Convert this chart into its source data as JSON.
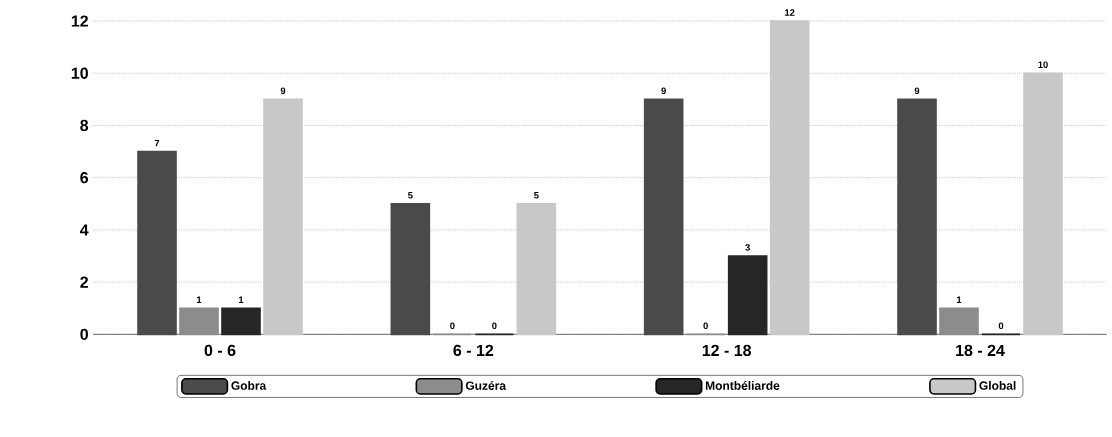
{
  "chart_data": {
    "type": "bar",
    "categories": [
      "0 - 6",
      "6 - 12",
      "12 - 18",
      "18 - 24"
    ],
    "series": [
      {
        "name": "Gobra",
        "color": "#4a4a4a",
        "values": [
          7,
          5,
          9,
          9
        ]
      },
      {
        "name": "Guzéra",
        "color": "#8c8c8c",
        "values": [
          1,
          0,
          0,
          1
        ]
      },
      {
        "name": "Montbéliarde",
        "color": "#262626",
        "values": [
          1,
          0,
          3,
          0
        ]
      },
      {
        "name": "Global",
        "color": "#c8c8c8",
        "values": [
          9,
          5,
          12,
          10
        ]
      }
    ],
    "ylim": [
      0,
      12
    ],
    "yticks": [
      0,
      2,
      4,
      6,
      8,
      10,
      12
    ],
    "grid": "y",
    "legend": "bottom",
    "data_labels": true
  }
}
